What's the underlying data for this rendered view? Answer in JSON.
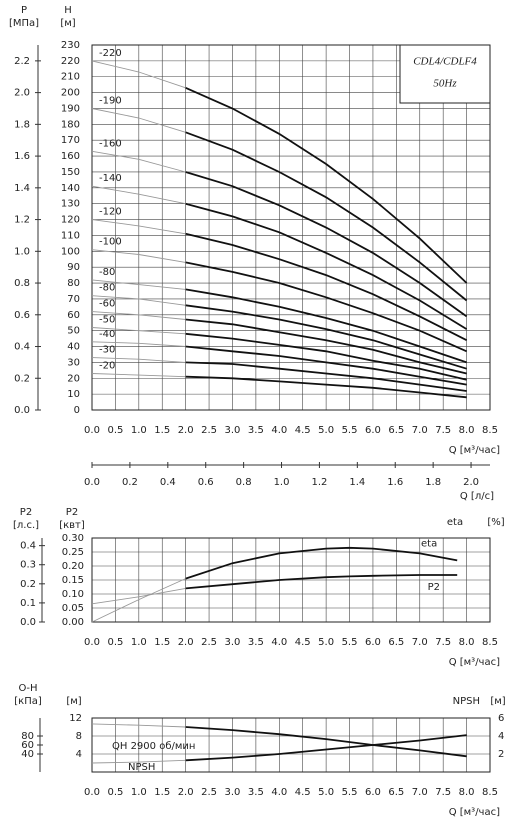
{
  "chart_data": [
    {
      "type": "line",
      "box_title": "CDL4/CDLF4",
      "box_subtitle": "50Hz",
      "y_label": "H",
      "y_unit": "[м]",
      "y2_label": "P",
      "y2_unit": "[МПа]",
      "x_label": "Q [м³/час]",
      "x2_label": "Q [л/с]",
      "color": "#111111",
      "lead_color": "#999999",
      "operating_range": [
        2,
        8
      ],
      "grid": true,
      "xlim": [
        0,
        8.5
      ],
      "xticks": [
        {
          "value": 0,
          "label": "0.0"
        },
        0.5,
        {
          "value": 1,
          "label": "1.0"
        },
        1.5,
        {
          "value": 2,
          "label": "2.0"
        },
        2.5,
        {
          "value": 3,
          "label": "3.0"
        },
        3.5,
        {
          "value": 4,
          "label": "4.0"
        },
        4.5,
        {
          "value": 5,
          "label": "5.0"
        },
        5.5,
        {
          "value": 6,
          "label": "6.0"
        },
        6.5,
        {
          "value": 7,
          "label": "7.0"
        },
        7.5,
        {
          "value": 8,
          "label": "8.0"
        },
        8.5
      ],
      "ylim": [
        0,
        230
      ],
      "yticks": [
        0,
        10,
        20,
        30,
        40,
        50,
        60,
        70,
        80,
        90,
        100,
        110,
        120,
        130,
        140,
        150,
        160,
        170,
        180,
        190,
        200,
        210,
        220,
        230
      ],
      "y2lim": [
        0,
        2.3
      ],
      "y2ticks": [
        {
          "value": 0,
          "label": "0.0"
        },
        0.2,
        0.4,
        0.6,
        0.8,
        {
          "value": 1,
          "label": "1.0"
        },
        1.2,
        1.4,
        1.6,
        1.8,
        {
          "value": 2,
          "label": "2.0"
        },
        2.2
      ],
      "x2lim": [
        0,
        2.1
      ],
      "x2ticks": [
        {
          "value": 0,
          "label": "0.0"
        },
        0.2,
        0.4,
        0.6,
        0.8,
        {
          "value": 1,
          "label": "1.0"
        },
        1.2,
        1.4,
        1.6,
        1.8,
        {
          "value": 2,
          "label": "2.0"
        }
      ],
      "x": [
        0,
        1,
        2,
        3,
        4,
        5,
        6,
        7,
        8
      ],
      "series": [
        {
          "name": "-220",
          "values": [
            220,
            213,
            203,
            190,
            174,
            155,
            133,
            108,
            80
          ]
        },
        {
          "name": "-190",
          "values": [
            190,
            184,
            175,
            164,
            150,
            134,
            115,
            93,
            69
          ]
        },
        {
          "name": "-160",
          "values": [
            163,
            158,
            150,
            141,
            129,
            115,
            99,
            80,
            59
          ]
        },
        {
          "name": "-140",
          "values": [
            141,
            136,
            130,
            122,
            112,
            99,
            85,
            69,
            51
          ]
        },
        {
          "name": "-120",
          "values": [
            120,
            116,
            111,
            104,
            95,
            85,
            73,
            59,
            44
          ]
        },
        {
          "name": "-100",
          "values": [
            101,
            98,
            93,
            87,
            80,
            71,
            61,
            50,
            37
          ]
        },
        {
          "name": "-80",
          "values": [
            82,
            79,
            76,
            71,
            65,
            58,
            50,
            40,
            30
          ]
        },
        {
          "name": "-80",
          "values": [
            72,
            70,
            66,
            62,
            57,
            51,
            44,
            35,
            26
          ]
        },
        {
          "name": "-60",
          "values": [
            62,
            60,
            57,
            54,
            49,
            44,
            38,
            30,
            23
          ]
        },
        {
          "name": "-50",
          "values": [
            52,
            50,
            48,
            45,
            41,
            37,
            31,
            26,
            19
          ]
        },
        {
          "name": "-40",
          "values": [
            43,
            42,
            40,
            37,
            34,
            30,
            26,
            21,
            16
          ]
        },
        {
          "name": "-30",
          "values": [
            33,
            32,
            30,
            29,
            26,
            23,
            20,
            16,
            12
          ]
        },
        {
          "name": "-20",
          "values": [
            23,
            22,
            21,
            20,
            18,
            16,
            14,
            11,
            8
          ]
        }
      ]
    },
    {
      "type": "line",
      "y_label": "P2",
      "y_unit": "[квт]",
      "y2_label": "P2",
      "y2_unit": "[л.с.]",
      "y3_label": "eta",
      "y3_unit": "[%]",
      "x_label": "Q [м³/час]",
      "color": "#111111",
      "lead_color": "#999999",
      "operating_range": [
        2,
        7.8
      ],
      "grid": true,
      "xlim": [
        0,
        8.5
      ],
      "xticks": [
        {
          "value": 0,
          "label": "0.0"
        },
        0.5,
        {
          "value": 1,
          "label": "1.0"
        },
        1.5,
        {
          "value": 2,
          "label": "2.0"
        },
        2.5,
        {
          "value": 3,
          "label": "3.0"
        },
        3.5,
        {
          "value": 4,
          "label": "4.0"
        },
        4.5,
        {
          "value": 5,
          "label": "5.0"
        },
        5.5,
        {
          "value": 6,
          "label": "6.0"
        },
        6.5,
        {
          "value": 7,
          "label": "7.0"
        },
        7.5,
        {
          "value": 8,
          "label": "8.0"
        },
        8.5
      ],
      "ylim": [
        0,
        0.3
      ],
      "yticks": [
        {
          "value": 0,
          "label": "0.00"
        },
        0.05,
        {
          "value": 0.1,
          "label": "0.10"
        },
        0.15,
        {
          "value": 0.2,
          "label": "0.20"
        },
        0.25,
        {
          "value": 0.3,
          "label": "0.30"
        }
      ],
      "y2lim": [
        0,
        0.44
      ],
      "y2ticks": [
        {
          "value": 0,
          "label": "0.0"
        },
        0.1,
        0.2,
        0.3,
        0.4
      ],
      "x": [
        0,
        1,
        2,
        3,
        4,
        5,
        5.5,
        6,
        7,
        7.8
      ],
      "series": [
        {
          "name": "eta",
          "values": [
            0,
            0.08,
            0.155,
            0.21,
            0.245,
            0.262,
            0.265,
            0.262,
            0.245,
            0.22
          ]
        },
        {
          "name": "P2",
          "values": [
            0.065,
            0.09,
            0.12,
            0.135,
            0.15,
            0.16,
            0.163,
            0.165,
            0.168,
            0.168
          ]
        }
      ]
    },
    {
      "type": "line",
      "y_label": "О-Н",
      "y3_unit": "[кПа]",
      "y_unit": "[м]",
      "y2_label": "NPSH",
      "y2_unit": "[м]",
      "x_label": "Q [м³/час]",
      "color": "#111111",
      "lead_color": "#999999",
      "operating_range": [
        2,
        8
      ],
      "grid": true,
      "xlim": [
        0,
        8.5
      ],
      "xticks": [
        {
          "value": 0,
          "label": "0.0"
        },
        0.5,
        {
          "value": 1,
          "label": "1.0"
        },
        1.5,
        {
          "value": 2,
          "label": "2.0"
        },
        2.5,
        {
          "value": 3,
          "label": "3.0"
        },
        3.5,
        {
          "value": 4,
          "label": "4.0"
        },
        4.5,
        {
          "value": 5,
          "label": "5.0"
        },
        5.5,
        {
          "value": 6,
          "label": "6.0"
        },
        6.5,
        {
          "value": 7,
          "label": "7.0"
        },
        7.5,
        {
          "value": 8,
          "label": "8.0"
        },
        8.5
      ],
      "ylim": [
        0,
        12
      ],
      "yticks": [
        4,
        8,
        12
      ],
      "y2lim": [
        0,
        6
      ],
      "y2ticks": [
        2,
        4,
        6
      ],
      "y3lim": [
        0,
        120
      ],
      "y3ticks": [
        40,
        60,
        80
      ],
      "x": [
        0,
        1,
        2,
        3,
        4,
        5,
        6,
        7,
        8
      ],
      "series": [
        {
          "name": "QH 2900 об/мин",
          "values": [
            10.7,
            10.4,
            10,
            9.3,
            8.4,
            7.3,
            6,
            4.8,
            3.5
          ]
        },
        {
          "name": "NPSH",
          "axis": "y2",
          "values": [
            1,
            1.1,
            1.3,
            1.6,
            2,
            2.5,
            3,
            3.5,
            4.1
          ]
        }
      ]
    }
  ]
}
